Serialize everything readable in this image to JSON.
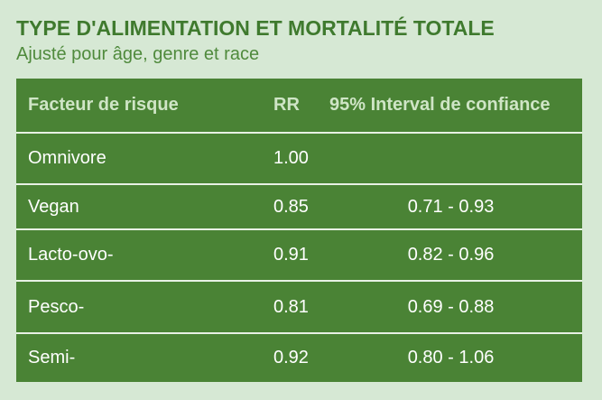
{
  "title": "TYPE D'ALIMENTATION ET MORTALITÉ TOTALE",
  "subtitle": "Ajusté pour âge, genre et race",
  "table": {
    "headers": [
      "Facteur de risque",
      "RR",
      "95% Interval de confiance"
    ],
    "rows": [
      [
        "Omnivore",
        "1.00",
        ""
      ],
      [
        "Vegan",
        "0.85",
        "0.71 - 0.93"
      ],
      [
        "Lacto-ovo-",
        "0.91",
        "0.82 - 0.96"
      ],
      [
        "Pesco-",
        "0.81",
        "0.69 - 0.88"
      ],
      [
        "Semi-",
        "0.92",
        "0.80 - 1.06"
      ]
    ]
  },
  "colors": {
    "background": "#d6e8d4",
    "title": "#3f7a2e",
    "table_fill": "#4a8335",
    "header_text": "#cfe5c6",
    "separator": "#e8f1e4"
  }
}
